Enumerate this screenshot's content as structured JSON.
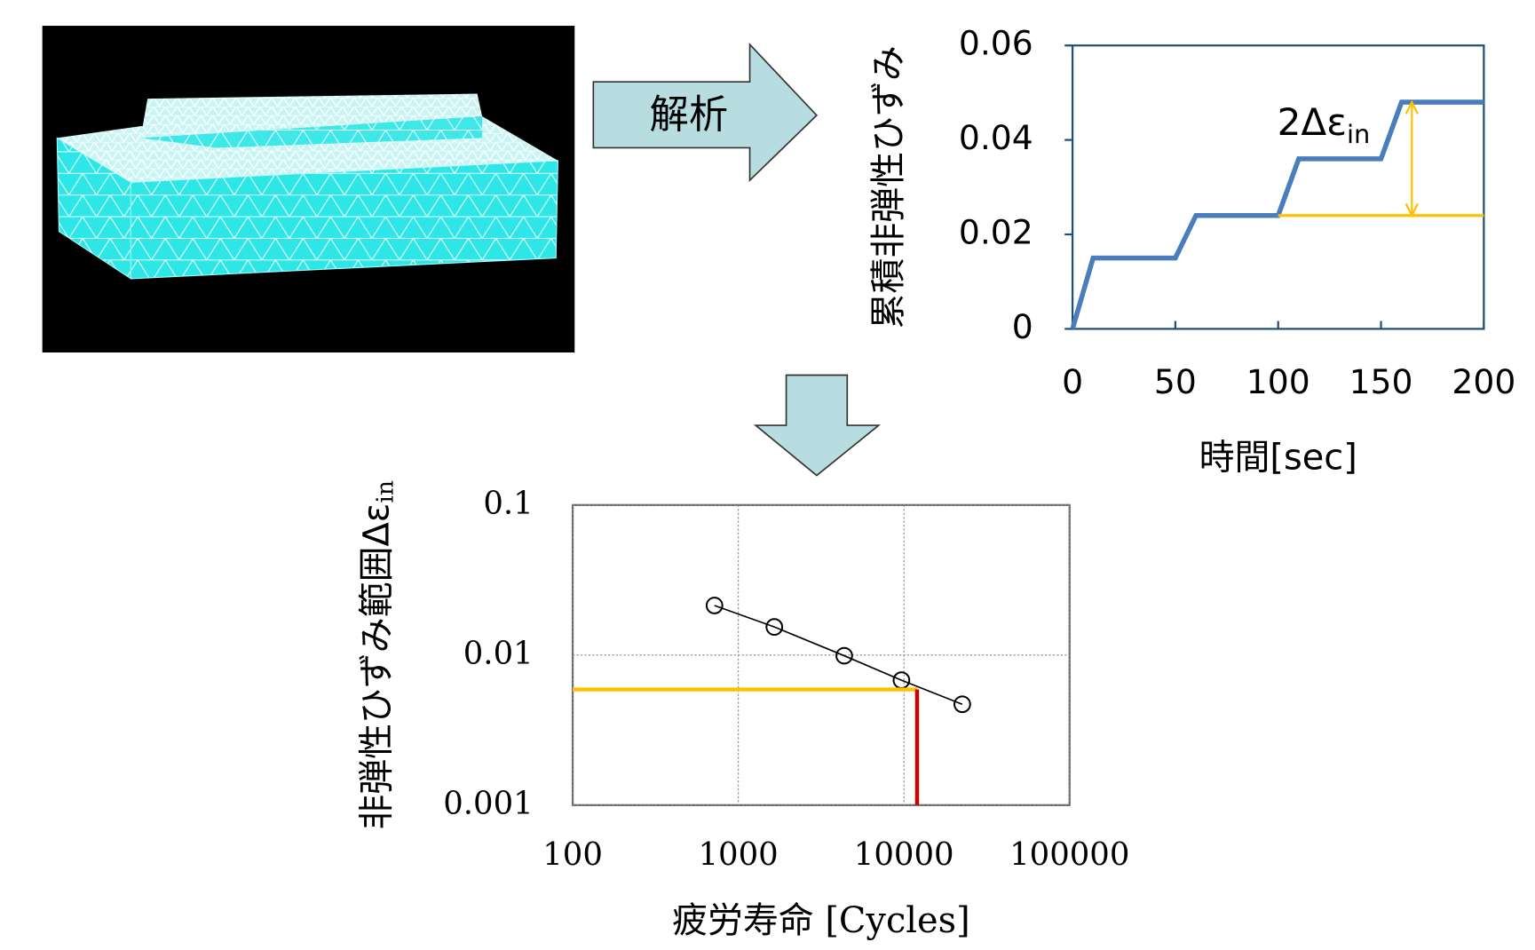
{
  "arrow_label": "解析",
  "chart_data": [
    {
      "type": "line",
      "y_label": "累積非弾性ひずみ",
      "x_label": "時間[sec]",
      "x": [
        0,
        10,
        50,
        60,
        100,
        110,
        150,
        160,
        200
      ],
      "series": [
        {
          "color": "#4a7ebb",
          "values": [
            0,
            0.015,
            0.015,
            0.024,
            0.024,
            0.036,
            0.036,
            0.048,
            0.048
          ]
        }
      ],
      "xlim": [
        0,
        200
      ],
      "ylim": [
        0,
        0.06
      ],
      "xticks": [
        0,
        50,
        100,
        150,
        200
      ],
      "yticks": [
        0,
        0.02,
        0.04,
        0.06
      ],
      "annotation": {
        "text": "2Δε",
        "subscript": "in",
        "color": "#ffc000",
        "x": [
          100,
          200
        ],
        "y": [
          0.024,
          0.048
        ],
        "arrow_x": 165
      }
    },
    {
      "type": "scatter",
      "y_label": "非弾性ひずみ範囲Δε",
      "y_label_subscript": "in",
      "x_label": "疲労寿命 [Cycles]",
      "x": [
        718,
        1650,
        4360,
        9660,
        22500
      ],
      "series": [
        {
          "color": "#000000",
          "values": [
            0.0214,
            0.0154,
            0.0099,
            0.0068,
            0.0047
          ]
        }
      ],
      "xscale": "log",
      "yscale": "log",
      "xlim": [
        100,
        100000
      ],
      "ylim": [
        0.001,
        0.1
      ],
      "xticks": [
        100,
        1000,
        10000,
        100000
      ],
      "yticks": [
        0.001,
        0.01,
        0.1
      ],
      "grid": true,
      "readout": {
        "x": 12000,
        "y": 0.0059,
        "colors": [
          "#ffc000",
          "#d00000"
        ]
      }
    }
  ]
}
